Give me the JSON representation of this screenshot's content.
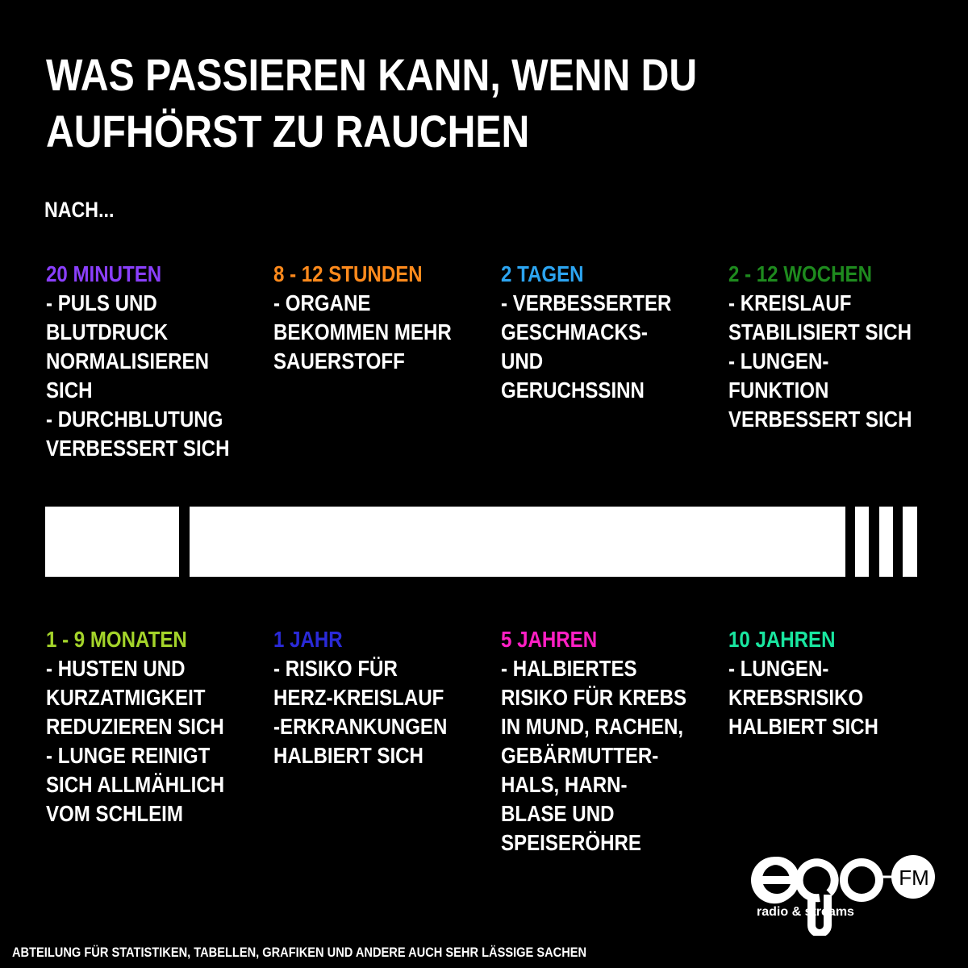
{
  "title": {
    "line1": "WAS PASSIEREN KANN, WENN DU",
    "line2": "AUFHÖRST ZU RAUCHEN"
  },
  "intro": "NACH...",
  "milestones_top": [
    {
      "heading": "20 MINUTEN",
      "color": "#8a3ffc",
      "lines": [
        "- PULS UND",
        "BLUTDRUCK",
        "NORMALISIEREN",
        "SICH",
        "- DURCHBLUTUNG",
        "VERBESSERT SICH"
      ]
    },
    {
      "heading": "8 - 12 STUNDEN",
      "color": "#ff8a1c",
      "lines": [
        "- ORGANE",
        "BEKOMMEN MEHR",
        "SAUERSTOFF"
      ]
    },
    {
      "heading": "2 TAGEN",
      "color": "#2ca4f0",
      "lines": [
        "- VERBESSERTER",
        "GESCHMACKS-",
        "UND",
        "GERUCHSSINN"
      ]
    },
    {
      "heading": "2 - 12 WOCHEN",
      "color": "#1e8a1e",
      "lines": [
        "- KREISLAUF",
        "STABILISIERT SICH",
        "- LUNGEN-",
        "FUNKTION",
        "VERBESSERT SICH"
      ]
    }
  ],
  "milestones_bottom": [
    {
      "heading": "1 - 9 MONATEN",
      "color": "#a4d42a",
      "lines": [
        "- HUSTEN UND",
        "KURZATMIGKEIT",
        "REDUZIEREN SICH",
        "- LUNGE REINIGT",
        "SICH ALLMÄHLICH",
        "VOM SCHLEIM"
      ]
    },
    {
      "heading": "1 JAHR",
      "color": "#2a2ad8",
      "lines": [
        "- RISIKO FÜR",
        "HERZ-KREISLAUF",
        "-ERKRANKUNGEN",
        "HALBIERT SICH"
      ]
    },
    {
      "heading": "5 JAHREN",
      "color": "#ff1fc4",
      "lines": [
        "- HALBIERTES",
        "RISIKO FÜR KREBS",
        "IN MUND, RACHEN,",
        "GEBÄRMUTTER-",
        "HALS, HARN-",
        "BLASE UND",
        "SPEISERÖHRE"
      ]
    },
    {
      "heading": "10 JAHREN",
      "color": "#19e6a0",
      "lines": [
        "- LUNGEN-",
        "KREBSRISIKO",
        "HALBIERT SICH"
      ]
    }
  ],
  "logo": {
    "wordmark": "ego",
    "suffix": "FM",
    "tagline": "radio & streams"
  },
  "footer": "ABTEILUNG FÜR STATISTIKEN, TABELLEN, GRAFIKEN UND ANDERE AUCH SEHR LÄSSIGE SACHEN"
}
